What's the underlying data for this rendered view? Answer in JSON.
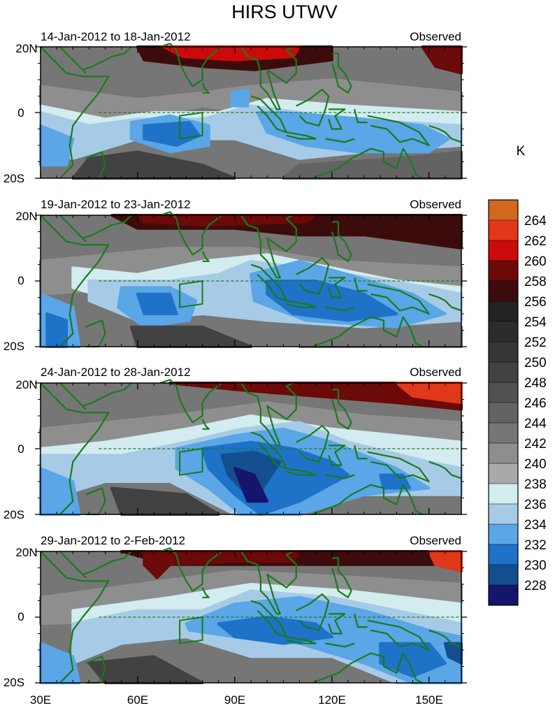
{
  "title": "HIRS UTWV",
  "unit_label": "K",
  "panels": [
    {
      "date_range": "14-Jan-2012 to 18-Jan-2012",
      "label": "Observed"
    },
    {
      "date_range": "19-Jan-2012 to 23-Jan-2012",
      "label": "Observed"
    },
    {
      "date_range": "24-Jan-2012 to 28-Jan-2012",
      "label": "Observed"
    },
    {
      "date_range": "29-Jan-2012 to 2-Feb-2012",
      "label": "Observed"
    }
  ],
  "lat_labels": [
    "20N",
    "0",
    "20S"
  ],
  "lon_labels": [
    "30E",
    "60E",
    "90E",
    "120E",
    "150E"
  ],
  "colorbar": {
    "levels": [
      "228",
      "230",
      "232",
      "234",
      "236",
      "238",
      "240",
      "242",
      "244",
      "246",
      "248",
      "250",
      "252",
      "254",
      "256",
      "258",
      "260",
      "262",
      "264"
    ],
    "colors": [
      "#15156e",
      "#134f8f",
      "#1e72c8",
      "#5aa6e6",
      "#a7cbe6",
      "#d2ecef",
      "#a9a9a9",
      "#8e8e8e",
      "#767676",
      "#636363",
      "#515151",
      "#424242",
      "#363636",
      "#2c2c2c",
      "#222222",
      "#3c0c0c",
      "#6c0909",
      "#cc0a0a",
      "#e03818",
      "#d2681e"
    ]
  },
  "colors": {
    "coast": "#1a7a1a",
    "box": "#1a7a1a",
    "equator": "#1a7a1a"
  }
}
